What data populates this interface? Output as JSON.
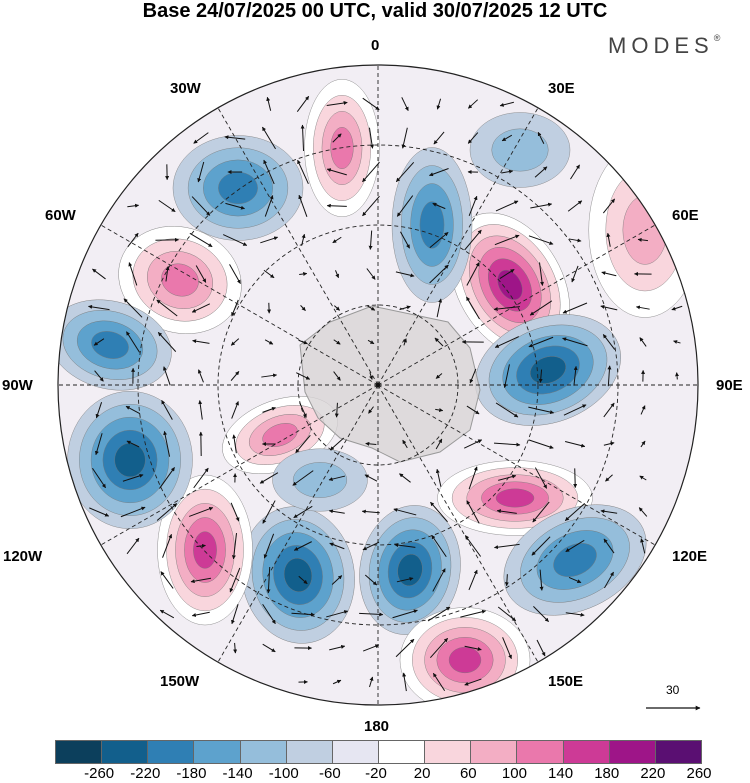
{
  "title": "Base 24/07/2025 00 UTC, valid 30/07/2025 12 UTC",
  "brand": "MODES",
  "brand_mark": "®",
  "longitude_labels": {
    "lon_0": "0",
    "lon_30e": "30E",
    "lon_60e": "60E",
    "lon_90e": "90E",
    "lon_120e": "120E",
    "lon_150e": "150E",
    "lon_180": "180",
    "lon_150w": "150W",
    "lon_120w": "120W",
    "lon_90w": "90W",
    "lon_60w": "60W",
    "lon_30w": "30W"
  },
  "reference_vector": "30",
  "colorbar": {
    "ticks": [
      "-260",
      "-220",
      "-180",
      "-140",
      "-100",
      "-60",
      "-20",
      "20",
      "60",
      "100",
      "140",
      "180",
      "220",
      "260"
    ],
    "colors": [
      "#0c3f5c",
      "#125f8c",
      "#2f7fb4",
      "#5da2cd",
      "#95bedb",
      "#c0cfe1",
      "#e6e6f2",
      "#ffffff",
      "#f9d6dd",
      "#f3aec4",
      "#ea78ac",
      "#cd3a96",
      "#9e1588",
      "#5a0f72"
    ]
  },
  "anomaly_centers": [
    {
      "sign": "positive",
      "magnitude": 240
    },
    {
      "sign": "negative",
      "magnitude": -200
    },
    {
      "sign": "positive",
      "magnitude": 200
    },
    {
      "sign": "negative",
      "magnitude": -210
    },
    {
      "sign": "positive",
      "magnitude": 180
    },
    {
      "sign": "negative",
      "magnitude": -190
    },
    {
      "sign": "positive",
      "magnitude": 180
    },
    {
      "sign": "negative",
      "magnitude": -200
    },
    {
      "sign": "positive",
      "magnitude": 170
    },
    {
      "sign": "negative",
      "magnitude": -150
    },
    {
      "sign": "positive",
      "magnitude": 170
    },
    {
      "sign": "negative",
      "magnitude": -170
    },
    {
      "sign": "positive",
      "magnitude": 140
    },
    {
      "sign": "negative",
      "magnitude": -170
    },
    {
      "sign": "negative",
      "magnitude": -150
    },
    {
      "sign": "positive",
      "magnitude": 120
    },
    {
      "sign": "negative",
      "magnitude": -80
    },
    {
      "sign": "negative",
      "magnitude": -90
    }
  ]
}
